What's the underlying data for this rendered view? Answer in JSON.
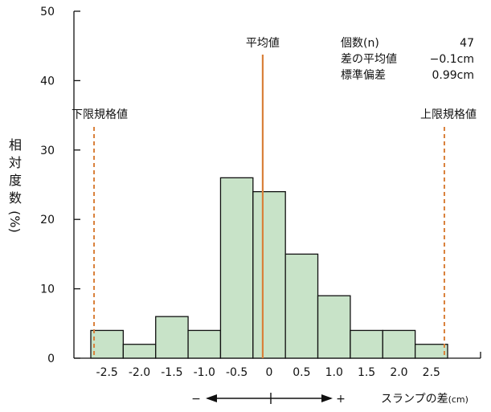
{
  "chart_data": {
    "type": "bar",
    "title": "",
    "categories": [
      "-2.5",
      "-2.0",
      "-1.5",
      "-1.0",
      "-0.5",
      "0",
      "0.5",
      "1.0",
      "1.5",
      "2.0",
      "2.5"
    ],
    "x_bin_edges": [
      -2.75,
      -2.25,
      -1.75,
      -1.25,
      -0.75,
      -0.25,
      0.25,
      0.75,
      1.25,
      1.75,
      2.25,
      2.75
    ],
    "values": [
      4,
      2,
      6,
      4,
      26,
      24,
      15,
      9,
      4,
      4,
      2
    ],
    "ylim": [
      0,
      50
    ],
    "yticks": [
      0,
      10,
      20,
      30,
      40,
      50
    ],
    "ylabel_chars": [
      "相",
      "対",
      "度",
      "数",
      "(%)"
    ],
    "xlabel_main": "スランプの差",
    "xlabel_unit": "(cm)",
    "direction": {
      "minus": "−",
      "plus": "+"
    },
    "bar_color": "#c8e3c8",
    "bar_stroke": "#111111",
    "line_color": "#d9803a",
    "mean_line": {
      "x": -0.1,
      "label": "平均値"
    },
    "lower_limit": {
      "x": -2.7,
      "label": "下限規格値"
    },
    "upper_limit": {
      "x": 2.7,
      "label": "上限規格値"
    },
    "stats": [
      {
        "label": "個数(n)",
        "value": "47"
      },
      {
        "label": "差の平均値",
        "value": "−0.1cm"
      },
      {
        "label": "標準偏差",
        "value": "0.99cm"
      }
    ],
    "grid": false
  }
}
